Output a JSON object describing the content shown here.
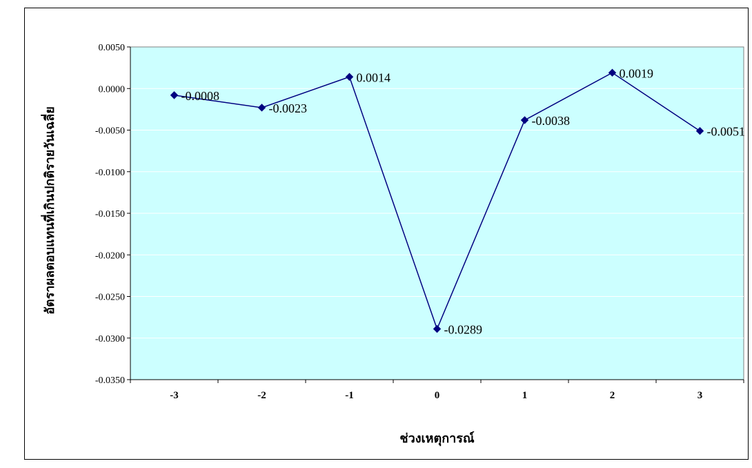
{
  "chart_data": {
    "type": "line",
    "xlabel": "ช่วงเหตุการณ์",
    "ylabel": "อัตราผลตอบแทนที่เกินปกติรายวันเฉลี่ย",
    "categories": [
      "-3",
      "-2",
      "-1",
      "0",
      "1",
      "2",
      "3"
    ],
    "series": [
      {
        "values": [
          -0.0008,
          -0.0023,
          0.0014,
          -0.0289,
          -0.0038,
          0.0019,
          -0.0051
        ],
        "labels": [
          "-0.0008",
          "-0.0023",
          "0.0014",
          "-0.0289",
          "-0.0038",
          "0.0019",
          "-0.0051"
        ],
        "color": "#000080"
      }
    ],
    "ylim": [
      -0.035,
      0.005
    ],
    "yticks": [
      0.005,
      0.0,
      -0.005,
      -0.01,
      -0.015,
      -0.02,
      -0.025,
      -0.03,
      -0.035
    ],
    "ytick_labels": [
      "0.0050",
      "0.0000",
      "-0.0050",
      "-0.0100",
      "-0.0150",
      "-0.0200",
      "-0.0250",
      "-0.0300",
      "-0.0350"
    ],
    "grid": true,
    "plot_background": "#CCFFFF",
    "grid_color": "#FFFFFF",
    "legend": "none"
  }
}
